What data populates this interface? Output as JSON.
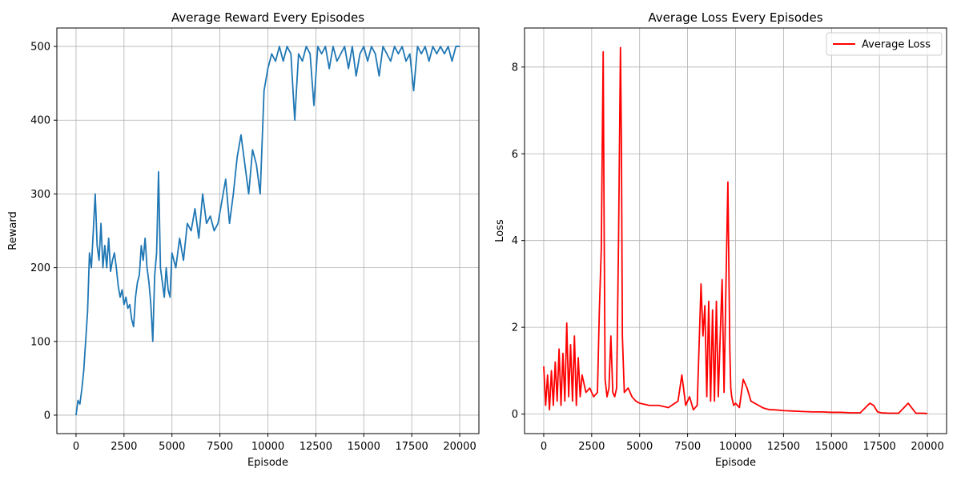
{
  "chart_data": [
    {
      "type": "line",
      "title": "Average Reward Every Episodes",
      "xlabel": "Episode",
      "ylabel": "Reward",
      "xlim": [
        -1000,
        21000
      ],
      "ylim": [
        -25,
        525
      ],
      "xticks": [
        0,
        2500,
        5000,
        7500,
        10000,
        12500,
        15000,
        17500,
        20000
      ],
      "yticks": [
        0,
        100,
        200,
        300,
        400,
        500
      ],
      "grid": true,
      "legend": null,
      "series": [
        {
          "color": "#1f77b4",
          "x": [
            0,
            100,
            200,
            300,
            400,
            500,
            600,
            700,
            800,
            900,
            1000,
            1100,
            1200,
            1300,
            1400,
            1500,
            1600,
            1700,
            1800,
            1900,
            2000,
            2100,
            2200,
            2300,
            2400,
            2500,
            2600,
            2700,
            2800,
            2900,
            3000,
            3100,
            3200,
            3300,
            3400,
            3500,
            3600,
            3700,
            3800,
            3900,
            4000,
            4100,
            4200,
            4300,
            4400,
            4500,
            4600,
            4700,
            4800,
            4900,
            5000,
            5200,
            5400,
            5600,
            5800,
            6000,
            6200,
            6400,
            6600,
            6800,
            7000,
            7200,
            7400,
            7600,
            7800,
            8000,
            8200,
            8400,
            8600,
            8800,
            9000,
            9200,
            9400,
            9600,
            9800,
            10000,
            10200,
            10400,
            10600,
            10800,
            11000,
            11200,
            11400,
            11600,
            11800,
            12000,
            12200,
            12400,
            12600,
            12800,
            13000,
            13200,
            13400,
            13600,
            13800,
            14000,
            14200,
            14400,
            14600,
            14800,
            15000,
            15200,
            15400,
            15600,
            15800,
            16000,
            16200,
            16400,
            16600,
            16800,
            17000,
            17200,
            17400,
            17600,
            17800,
            18000,
            18200,
            18400,
            18600,
            18800,
            19000,
            19200,
            19400,
            19600,
            19800,
            20000
          ],
          "values": [
            0,
            20,
            15,
            35,
            60,
            100,
            140,
            220,
            200,
            250,
            300,
            230,
            210,
            260,
            200,
            230,
            200,
            240,
            195,
            210,
            220,
            200,
            175,
            160,
            170,
            150,
            160,
            145,
            150,
            130,
            120,
            160,
            180,
            190,
            230,
            210,
            240,
            200,
            180,
            150,
            100,
            190,
            220,
            330,
            200,
            180,
            160,
            200,
            170,
            160,
            220,
            200,
            240,
            210,
            260,
            250,
            280,
            240,
            300,
            260,
            270,
            250,
            260,
            290,
            320,
            260,
            300,
            350,
            380,
            340,
            300,
            360,
            340,
            300,
            440,
            470,
            490,
            480,
            500,
            480,
            500,
            490,
            400,
            490,
            480,
            500,
            490,
            420,
            500,
            490,
            500,
            470,
            500,
            480,
            490,
            500,
            470,
            500,
            460,
            490,
            500,
            480,
            500,
            490,
            460,
            500,
            490,
            480,
            500,
            490,
            500,
            480,
            490,
            440,
            500,
            490,
            500,
            480,
            500,
            490,
            500,
            490,
            500,
            480,
            500,
            500
          ]
        }
      ]
    },
    {
      "type": "line",
      "title": "Average Loss Every Episodes",
      "xlabel": "Episode",
      "ylabel": "Loss",
      "xlim": [
        -1000,
        21000
      ],
      "ylim": [
        -0.45,
        8.9
      ],
      "xticks": [
        0,
        2500,
        5000,
        7500,
        10000,
        12500,
        15000,
        17500,
        20000
      ],
      "yticks": [
        0,
        2,
        4,
        6,
        8
      ],
      "grid": true,
      "legend": "top-right",
      "series": [
        {
          "name": "Average Loss",
          "color": "#ff0000",
          "x": [
            0,
            100,
            200,
            300,
            400,
            500,
            600,
            700,
            800,
            900,
            1000,
            1100,
            1200,
            1300,
            1400,
            1500,
            1600,
            1700,
            1800,
            1900,
            2000,
            2200,
            2400,
            2600,
            2800,
            2900,
            3000,
            3050,
            3100,
            3150,
            3200,
            3300,
            3400,
            3500,
            3600,
            3700,
            3800,
            3900,
            4000,
            4050,
            4100,
            4200,
            4400,
            4600,
            4800,
            5000,
            5500,
            6000,
            6500,
            7000,
            7200,
            7400,
            7600,
            7800,
            8000,
            8200,
            8300,
            8400,
            8500,
            8600,
            8700,
            8800,
            8900,
            9000,
            9100,
            9200,
            9300,
            9400,
            9500,
            9600,
            9700,
            9750,
            9800,
            9900,
            10000,
            10200,
            10400,
            10600,
            10800,
            11000,
            11200,
            11400,
            11600,
            11800,
            12000,
            12500,
            13000,
            13500,
            14000,
            14500,
            15000,
            15500,
            16000,
            16500,
            17000,
            17200,
            17400,
            17600,
            18000,
            18500,
            19000,
            19400,
            19600,
            19800,
            20000
          ],
          "values": [
            1.1,
            0.2,
            0.9,
            0.1,
            1.0,
            0.2,
            1.2,
            0.3,
            1.5,
            0.2,
            1.4,
            0.3,
            2.1,
            0.4,
            1.6,
            0.3,
            1.8,
            0.2,
            1.3,
            0.4,
            0.9,
            0.5,
            0.6,
            0.4,
            0.5,
            2.4,
            3.8,
            6.1,
            8.35,
            4.2,
            0.8,
            0.4,
            0.6,
            1.8,
            0.5,
            0.4,
            0.6,
            4.0,
            8.45,
            6.2,
            1.8,
            0.5,
            0.6,
            0.4,
            0.3,
            0.25,
            0.2,
            0.2,
            0.15,
            0.3,
            0.9,
            0.2,
            0.4,
            0.1,
            0.2,
            3.0,
            1.8,
            2.5,
            0.4,
            2.6,
            0.3,
            2.4,
            0.3,
            2.6,
            0.4,
            1.8,
            3.1,
            0.5,
            3.0,
            5.35,
            1.5,
            0.6,
            0.4,
            0.2,
            0.25,
            0.15,
            0.8,
            0.6,
            0.3,
            0.25,
            0.2,
            0.15,
            0.12,
            0.1,
            0.1,
            0.08,
            0.07,
            0.06,
            0.05,
            0.05,
            0.04,
            0.04,
            0.03,
            0.03,
            0.25,
            0.2,
            0.05,
            0.03,
            0.02,
            0.02,
            0.25,
            0.02,
            0.02,
            0.02,
            0.01
          ]
        }
      ]
    }
  ]
}
